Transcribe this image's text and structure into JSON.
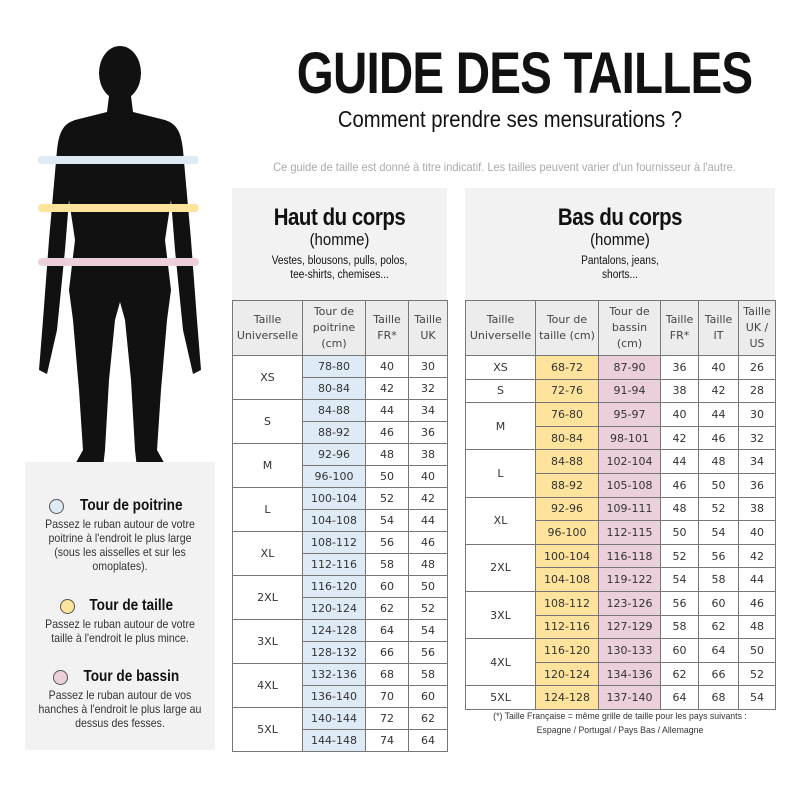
{
  "header": {
    "title": "GUIDE DES TAILLES",
    "subtitle": "Comment prendre ses mensurations ?",
    "note": "Ce guide de taille est donné à titre indicatif. Les tailles peuvent varier d'un fournisseur à l'autre."
  },
  "colors": {
    "chest": "#deebf7",
    "waist": "#fde39b",
    "hip": "#ebd0dc"
  },
  "legend": [
    {
      "title": "Tour de poitrine",
      "text": "Passez le ruban autour de votre poitrine à l'endroit le plus large (sous les aisselles et sur les omoplates).",
      "color": "#deebf7"
    },
    {
      "title": "Tour de taille",
      "text": "Passez le ruban autour de votre taille à l'endroit le plus mince.",
      "color": "#fde39b"
    },
    {
      "title": "Tour de bassin",
      "text": "Passez le ruban autour de vos hanches à l'endroit le plus large au dessus des fesses.",
      "color": "#ebd0dc"
    }
  ],
  "upper": {
    "title": "Haut du corps",
    "subtitle": "(homme)",
    "desc": "Vestes, blousons, pulls, polos, tee-shirts, chemises...",
    "headers": [
      "Taille Universelle",
      "Tour de poitrine (cm)",
      "Taille FR*",
      "Taille UK"
    ],
    "groups": [
      {
        "size": "XS",
        "rows": [
          [
            "78-80",
            "40",
            "30"
          ],
          [
            "80-84",
            "42",
            "32"
          ]
        ]
      },
      {
        "size": "S",
        "rows": [
          [
            "84-88",
            "44",
            "34"
          ],
          [
            "88-92",
            "46",
            "36"
          ]
        ]
      },
      {
        "size": "M",
        "rows": [
          [
            "92-96",
            "48",
            "38"
          ],
          [
            "96-100",
            "50",
            "40"
          ]
        ]
      },
      {
        "size": "L",
        "rows": [
          [
            "100-104",
            "52",
            "42"
          ],
          [
            "104-108",
            "54",
            "44"
          ]
        ]
      },
      {
        "size": "XL",
        "rows": [
          [
            "108-112",
            "56",
            "46"
          ],
          [
            "112-116",
            "58",
            "48"
          ]
        ]
      },
      {
        "size": "2XL",
        "rows": [
          [
            "116-120",
            "60",
            "50"
          ],
          [
            "120-124",
            "62",
            "52"
          ]
        ]
      },
      {
        "size": "3XL",
        "rows": [
          [
            "124-128",
            "64",
            "54"
          ],
          [
            "128-132",
            "66",
            "56"
          ]
        ]
      },
      {
        "size": "4XL",
        "rows": [
          [
            "132-136",
            "68",
            "58"
          ],
          [
            "136-140",
            "70",
            "60"
          ]
        ]
      },
      {
        "size": "5XL",
        "rows": [
          [
            "140-144",
            "72",
            "62"
          ],
          [
            "144-148",
            "74",
            "64"
          ]
        ]
      }
    ]
  },
  "lower": {
    "title": "Bas du corps",
    "subtitle": "(homme)",
    "desc": "Pantalons, jeans, shorts...",
    "headers": [
      "Taille Universelle",
      "Tour de taille (cm)",
      "Tour de bassin (cm)",
      "Taille FR*",
      "Taille IT",
      "Taille UK / US"
    ],
    "groups": [
      {
        "size": "XS",
        "rows": [
          [
            "68-72",
            "87-90",
            "36",
            "40",
            "26"
          ]
        ]
      },
      {
        "size": "S",
        "rows": [
          [
            "72-76",
            "91-94",
            "38",
            "42",
            "28"
          ]
        ]
      },
      {
        "size": "M",
        "rows": [
          [
            "76-80",
            "95-97",
            "40",
            "44",
            "30"
          ],
          [
            "80-84",
            "98-101",
            "42",
            "46",
            "32"
          ]
        ]
      },
      {
        "size": "L",
        "rows": [
          [
            "84-88",
            "102-104",
            "44",
            "48",
            "34"
          ],
          [
            "88-92",
            "105-108",
            "46",
            "50",
            "36"
          ]
        ]
      },
      {
        "size": "XL",
        "rows": [
          [
            "92-96",
            "109-111",
            "48",
            "52",
            "38"
          ],
          [
            "96-100",
            "112-115",
            "50",
            "54",
            "40"
          ]
        ]
      },
      {
        "size": "2XL",
        "rows": [
          [
            "100-104",
            "116-118",
            "52",
            "56",
            "42"
          ],
          [
            "104-108",
            "119-122",
            "54",
            "58",
            "44"
          ]
        ]
      },
      {
        "size": "3XL",
        "rows": [
          [
            "108-112",
            "123-126",
            "56",
            "60",
            "46"
          ],
          [
            "112-116",
            "127-129",
            "58",
            "62",
            "48"
          ]
        ]
      },
      {
        "size": "4XL",
        "rows": [
          [
            "116-120",
            "130-133",
            "60",
            "64",
            "50"
          ],
          [
            "120-124",
            "134-136",
            "62",
            "66",
            "52"
          ]
        ]
      },
      {
        "size": "5XL",
        "rows": [
          [
            "124-128",
            "137-140",
            "64",
            "68",
            "54"
          ]
        ]
      }
    ]
  },
  "footnote": {
    "line1": "(*) Taille Française = même grille de taille pour les pays suivants :",
    "line2": "Espagne / Portugal / Pays Bas / Allemagne"
  }
}
